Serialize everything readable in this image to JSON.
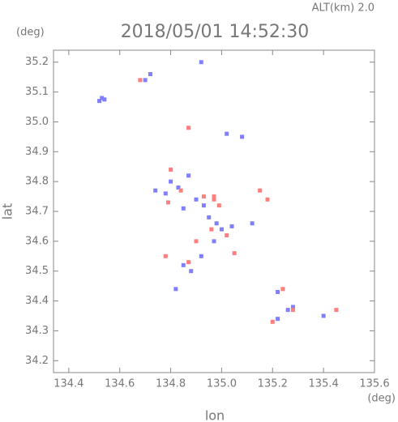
{
  "chart_data": {
    "type": "scatter",
    "title": "2018/05/01 14:52:30",
    "subtitle": "ALT(km) 2.0",
    "y_unit": "(deg)",
    "x_unit": "(deg)",
    "x_label": "lon",
    "y_label": "lat",
    "xlim": [
      134.34,
      135.6
    ],
    "ylim": [
      34.16,
      35.24
    ],
    "xticks": [
      134.4,
      134.6,
      134.8,
      {
        "value": 135,
        "label": "135.0"
      },
      135.2,
      135.4,
      135.6
    ],
    "yticks": [
      34.2,
      34.3,
      34.4,
      34.5,
      34.6,
      34.7,
      34.8,
      34.9,
      {
        "value": 35,
        "label": "35.0"
      },
      35.1,
      35.2
    ],
    "series": [
      {
        "color": "#7f7fff",
        "x": [
          134.52,
          134.53,
          134.54,
          134.7,
          134.72,
          134.92,
          134.74,
          134.78,
          134.8,
          134.83,
          134.87,
          134.9,
          134.93,
          134.95,
          134.98,
          135.0,
          135.04,
          135.08,
          135.02,
          134.85,
          134.88,
          134.92,
          134.82,
          135.22,
          135.26,
          135.28,
          135.22,
          135.4,
          135.12,
          134.85,
          134.97
        ],
        "y": [
          35.07,
          35.08,
          35.075,
          35.14,
          35.16,
          35.2,
          34.77,
          34.76,
          34.8,
          34.78,
          34.82,
          34.74,
          34.72,
          34.68,
          34.66,
          34.64,
          34.65,
          34.95,
          34.96,
          34.52,
          34.5,
          34.55,
          34.44,
          34.43,
          34.37,
          34.38,
          34.34,
          34.35,
          34.66,
          34.71,
          34.6
        ]
      },
      {
        "color": "#ff7f7f",
        "x": [
          134.68,
          134.87,
          134.8,
          134.84,
          134.79,
          134.93,
          134.97,
          134.99,
          134.96,
          135.02,
          134.9,
          135.05,
          134.78,
          134.87,
          135.15,
          135.18,
          135.24,
          135.2,
          135.28,
          135.45,
          134.97
        ],
        "y": [
          35.14,
          34.98,
          34.84,
          34.77,
          34.73,
          34.75,
          34.74,
          34.72,
          34.64,
          34.62,
          34.6,
          34.56,
          34.55,
          34.53,
          34.77,
          34.74,
          34.44,
          34.33,
          34.37,
          34.37,
          34.75
        ]
      }
    ]
  }
}
